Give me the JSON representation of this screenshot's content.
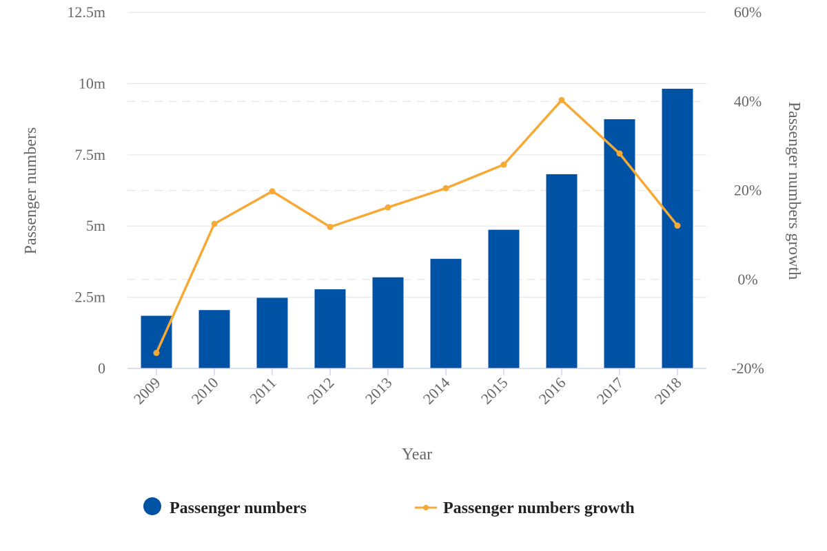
{
  "chart_data": {
    "type": "bar",
    "categories": [
      "2009",
      "2010",
      "2011",
      "2012",
      "2013",
      "2014",
      "2015",
      "2016",
      "2017",
      "2018"
    ],
    "series": [
      {
        "name": "Passenger numbers",
        "type": "bar",
        "axis": "left",
        "color": "#0052a5",
        "values": [
          1.85,
          2.05,
          2.48,
          2.78,
          3.2,
          3.85,
          4.87,
          6.82,
          8.75,
          9.82
        ]
      },
      {
        "name": "Passenger numbers growth",
        "type": "line",
        "axis": "right",
        "color": "#f7a935",
        "values": [
          -16.5,
          12.5,
          19.8,
          11.8,
          16.2,
          20.5,
          25.8,
          40.3,
          28.3,
          12.1
        ]
      }
    ],
    "xlabel": "Year",
    "ylabel": "Passenger numbers",
    "y2label": "Passenger numbers growth",
    "ylim": [
      0,
      12.5
    ],
    "y2lim": [
      -20,
      60
    ],
    "yticks": [
      {
        "value": 0,
        "label": "0"
      },
      {
        "value": 2.5,
        "label": "2.5m"
      },
      {
        "value": 5,
        "label": "5m"
      },
      {
        "value": 7.5,
        "label": "7.5m"
      },
      {
        "value": 10,
        "label": "10m"
      },
      {
        "value": 12.5,
        "label": "12.5m"
      }
    ],
    "y2ticks": [
      {
        "value": -20,
        "label": "-20%"
      },
      {
        "value": 0,
        "label": "0%"
      },
      {
        "value": 20,
        "label": "20%"
      },
      {
        "value": 40,
        "label": "40%"
      },
      {
        "value": 60,
        "label": "60%"
      }
    ],
    "grid": true,
    "legend": "bottom"
  }
}
